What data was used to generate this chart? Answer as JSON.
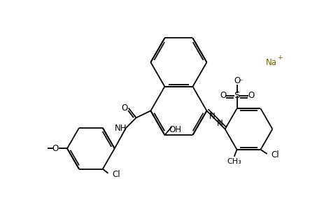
{
  "bg": "#ffffff",
  "lc": "#000000",
  "na_color": "#7a6000",
  "lw": 1.3,
  "fs": 8.5,
  "fs_sup": 6.5,
  "figsize": [
    4.63,
    3.06
  ],
  "dpi": 100
}
